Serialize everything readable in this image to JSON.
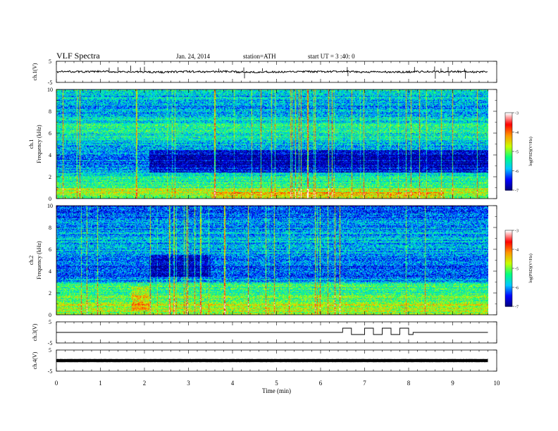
{
  "header": {
    "title": "VLF Spectra",
    "date": "Jan. 24, 2014",
    "station": "station=ATH",
    "start": "start UT = 3 :40: 0"
  },
  "colorbar": {
    "label": "log(PSD)(V²/Hz)",
    "ticks": [
      "-3",
      "-4",
      "-5",
      "-6",
      "-7"
    ],
    "range": [
      -7,
      -3
    ],
    "colors": [
      "#000078",
      "#0000ff",
      "#00c8ff",
      "#00ff80",
      "#c8ff00",
      "#ff9600",
      "#ff0000",
      "#ffffff"
    ]
  },
  "chart_data": [
    {
      "type": "line",
      "name": "ch1-waveform",
      "ylabel": "ch.1(V)",
      "ylim": [
        -5,
        5
      ],
      "yticks": [
        "5",
        "-5"
      ],
      "x": [
        0,
        1,
        2,
        3,
        4,
        5,
        6,
        7,
        8,
        9,
        9.8
      ],
      "values": [
        0,
        0,
        0,
        0,
        0,
        0,
        0,
        0,
        0,
        0,
        0
      ]
    },
    {
      "type": "heatmap",
      "name": "ch1-spectrogram",
      "ylabel": "ch.1 Frequency (kHz)",
      "ylim": [
        0,
        10
      ],
      "yticks": [
        "0",
        "2",
        "4",
        "6",
        "8",
        "10"
      ],
      "x_range": [
        0,
        9.8
      ],
      "z_range": [
        -7,
        -3
      ]
    },
    {
      "type": "heatmap",
      "name": "ch2-spectrogram",
      "ylabel": "ch.2 Frequency (kHz)",
      "ylim": [
        0,
        10
      ],
      "yticks": [
        "0",
        "2",
        "4",
        "6",
        "8",
        "10"
      ],
      "x_range": [
        0,
        9.8
      ],
      "z_range": [
        -7,
        -3
      ]
    },
    {
      "type": "line",
      "name": "ch3-waveform",
      "ylabel": "ch.3(V)",
      "ylim": [
        -5,
        5
      ],
      "yticks": [
        "5",
        "-5"
      ],
      "x": [
        0,
        6.5,
        6.5,
        6.7,
        6.7,
        7.0,
        7.0,
        7.2,
        7.2,
        7.4,
        7.4,
        7.6,
        7.6,
        7.8,
        7.8,
        8.0,
        8.0,
        8.1,
        8.1,
        9.8
      ],
      "values": [
        0,
        0,
        2,
        2,
        -1,
        -1,
        2,
        2,
        -1,
        -1,
        2,
        2,
        -1,
        -1,
        2,
        2,
        -1,
        -1,
        0,
        0
      ]
    },
    {
      "type": "line",
      "name": "ch4-waveform",
      "ylabel": "ch.4(V)",
      "ylim": [
        -5,
        5
      ],
      "yticks": [
        "5",
        "-5"
      ],
      "x": [
        0,
        9.8
      ],
      "values": [
        0,
        0
      ]
    }
  ],
  "xaxis": {
    "label": "Time (min)",
    "ticks": [
      "0",
      "1",
      "2",
      "3",
      "4",
      "5",
      "6",
      "7",
      "8",
      "9",
      "10"
    ],
    "range": [
      0,
      10
    ]
  }
}
